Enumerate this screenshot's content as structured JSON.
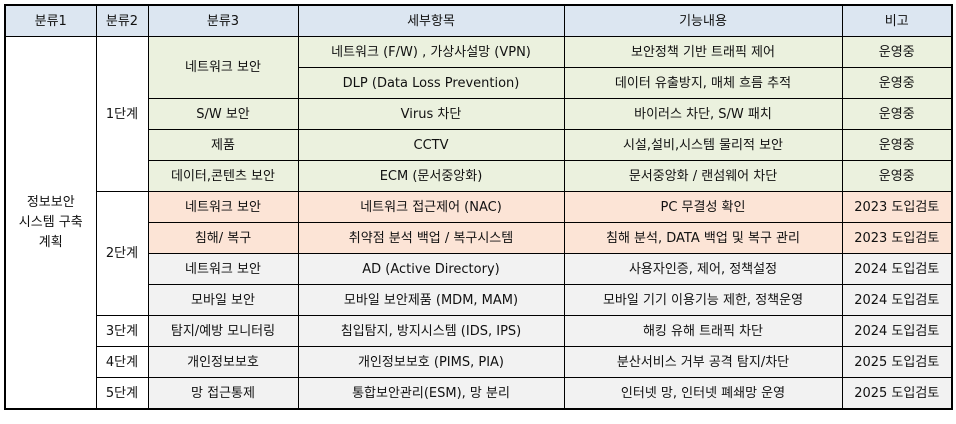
{
  "headers": [
    "분류1",
    "분류2",
    "분류3",
    "세부항목",
    "기능내용",
    "비고"
  ],
  "category1": {
    "line1": "정보보안",
    "line2": "시스템 구축",
    "line3": "계획"
  },
  "stages": [
    "1단계",
    "2단계",
    "3단계",
    "4단계",
    "5단계"
  ],
  "rows": [
    {
      "cat3": "네트워크 보안",
      "detail": "네트워크 (F/W) , 가상사설망 (VPN)",
      "function": "보안정책 기반 트래픽 제어",
      "note": "운영중"
    },
    {
      "cat3": "",
      "detail": "DLP (Data Loss Prevention)",
      "function": "데이터 유출방지, 매체 흐름 추적",
      "note": "운영중"
    },
    {
      "cat3": "S/W 보안",
      "detail": "Virus 차단",
      "function": "바이러스 차단, S/W 패치",
      "note": "운영중"
    },
    {
      "cat3": "제품",
      "detail": "CCTV",
      "function": "시설,설비,시스템 물리적 보안",
      "note": "운영중"
    },
    {
      "cat3": "데이터,콘텐츠 보안",
      "detail": "ECM (문서중앙화)",
      "function": "문서중앙화 / 랜섬웨어 차단",
      "note": "운영중"
    },
    {
      "cat3": "네트워크 보안",
      "detail": "네트워크 접근제어 (NAC)",
      "function": "PC 무결성 확인",
      "note": "2023 도입검토"
    },
    {
      "cat3": "침해/ 복구",
      "detail": "취약점 분석 백업 / 복구시스템",
      "function": "침해 분석, DATA 백업 및 복구 관리",
      "note": "2023 도입검토"
    },
    {
      "cat3": "네트워크 보안",
      "detail": "AD (Active Directory)",
      "function": "사용자인증, 제어, 정책설정",
      "note": "2024 도입검토"
    },
    {
      "cat3": "모바일 보안",
      "detail": "모바일 보안제품 (MDM, MAM)",
      "function": "모바일 기기 이용기능 제한, 정책운영",
      "note": "2024 도입검토"
    },
    {
      "cat3": "탐지/예방 모니터링",
      "detail": "침입탐지, 방지시스템 (IDS, IPS)",
      "function": "해킹 유해 트래픽 차단",
      "note": "2024 도입검토"
    },
    {
      "cat3": "개인정보보호",
      "detail": "개인정보보호 (PIMS, PIA)",
      "function": "분산서비스 거부 공격 탐지/차단",
      "note": "2025 도입검토"
    },
    {
      "cat3": "망 접근통제",
      "detail": "통합보안관리(ESM), 망 분리",
      "function": "인터넷 망, 인터넷 폐쇄망 운영",
      "note": "2025 도입검토"
    }
  ],
  "colors": {
    "header_bg": "#dce6f1",
    "stage1_bg": "#ebf1de",
    "stage2a_bg": "#fce4d6",
    "stage2b_bg": "#f2f2f2",
    "border": "#000000"
  }
}
